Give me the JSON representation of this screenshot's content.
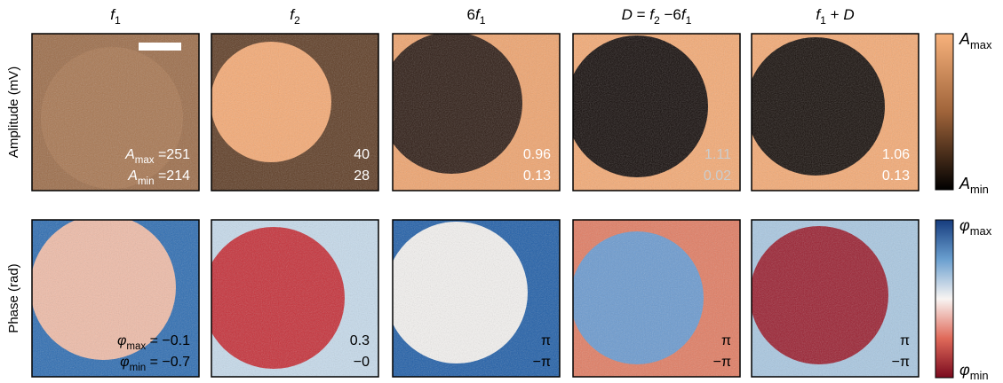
{
  "row_labels": [
    "Amplitude (mV)",
    "Phase (rad)"
  ],
  "columns": [
    {
      "title": [
        {
          "text": "f",
          "italic": true
        },
        {
          "text": "1",
          "sub": true
        }
      ]
    },
    {
      "title": [
        {
          "text": "f",
          "italic": true
        },
        {
          "text": "2",
          "sub": true
        }
      ]
    },
    {
      "title": [
        {
          "text": "6"
        },
        {
          "text": "f",
          "italic": true
        },
        {
          "text": "1",
          "sub": true
        }
      ]
    },
    {
      "title": [
        {
          "text": "D",
          "italic": true
        },
        {
          "text": " = "
        },
        {
          "text": "f",
          "italic": true
        },
        {
          "text": "2",
          "sub": true
        },
        {
          "text": " −6"
        },
        {
          "text": "f",
          "italic": true
        },
        {
          "text": "1",
          "sub": true
        }
      ]
    },
    {
      "title": [
        {
          "text": "f",
          "italic": true
        },
        {
          "text": "1",
          "sub": true
        },
        {
          "text": " + "
        },
        {
          "text": "D",
          "italic": true
        }
      ]
    }
  ],
  "panels": {
    "amplitude": [
      {
        "lines": [
          [
            {
              "text": "A",
              "italic": true
            },
            {
              "text": "max",
              "sub": true
            },
            {
              "text": " =251"
            }
          ],
          [
            {
              "text": "A",
              "italic": true
            },
            {
              "text": "min",
              "sub": true
            },
            {
              "text": " =214"
            }
          ]
        ]
      },
      {
        "lines": [
          [
            {
              "text": "40"
            }
          ],
          [
            {
              "text": "28"
            }
          ]
        ]
      },
      {
        "lines": [
          [
            {
              "text": "0.96"
            }
          ],
          [
            {
              "text": "0.13"
            }
          ]
        ]
      },
      {
        "lines": [
          [
            {
              "text": "1.11"
            }
          ],
          [
            {
              "text": "0.02"
            }
          ]
        ]
      },
      {
        "lines": [
          [
            {
              "text": "1.06"
            }
          ],
          [
            {
              "text": "0.13"
            }
          ]
        ]
      }
    ],
    "phase": [
      {
        "lines": [
          [
            {
              "text": "φ",
              "italic": true
            },
            {
              "text": "max",
              "sub": true
            },
            {
              "text": " = −0.1"
            }
          ],
          [
            {
              "text": "φ",
              "italic": true
            },
            {
              "text": "min",
              "sub": true
            },
            {
              "text": " = −0.7"
            }
          ]
        ]
      },
      {
        "lines": [
          [
            {
              "text": "0.3"
            }
          ],
          [
            {
              "text": "−0"
            }
          ]
        ]
      },
      {
        "lines": [
          [
            {
              "text": "π"
            }
          ],
          [
            {
              "text": "−π"
            }
          ]
        ]
      },
      {
        "lines": [
          [
            {
              "text": "π"
            }
          ],
          [
            {
              "text": "−π"
            }
          ]
        ]
      },
      {
        "lines": [
          [
            {
              "text": "π"
            }
          ],
          [
            {
              "text": "−π"
            }
          ]
        ]
      }
    ]
  },
  "colorbars": {
    "amplitude": {
      "max": [
        {
          "text": "A",
          "italic": true
        },
        {
          "text": "max",
          "sub": true
        }
      ],
      "min": [
        {
          "text": "A",
          "italic": true
        },
        {
          "text": "min",
          "sub": true
        }
      ]
    },
    "phase": {
      "max": [
        {
          "text": "φ",
          "italic": true
        },
        {
          "text": "max",
          "sub": true
        }
      ],
      "min": [
        {
          "text": "φ",
          "italic": true
        },
        {
          "text": "min",
          "sub": true
        }
      ]
    }
  }
}
